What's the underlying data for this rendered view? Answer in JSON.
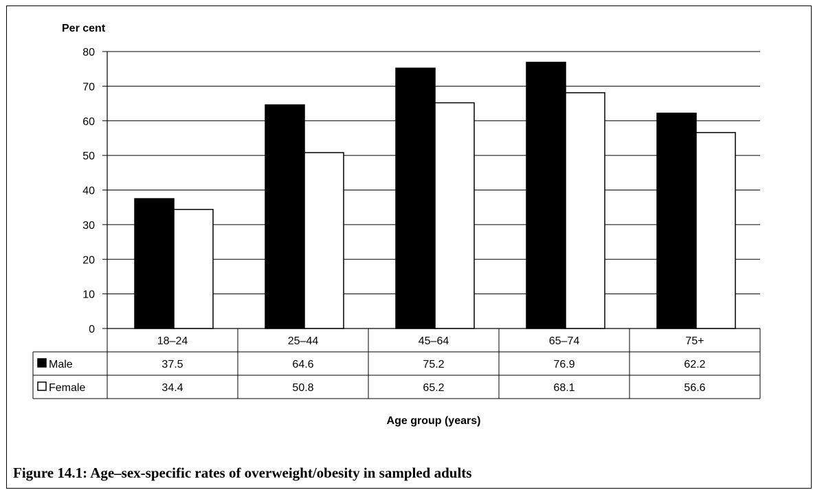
{
  "chart_data": {
    "type": "bar",
    "title": "",
    "ylabel": "Per cent",
    "xlabel": "Age group (years)",
    "ylim": [
      0,
      80
    ],
    "yticks": [
      "0",
      "10",
      "20",
      "30",
      "40",
      "50",
      "60",
      "70",
      "80"
    ],
    "grid": true,
    "legend": "data-table-left",
    "categories": [
      "18–24",
      "25–44",
      "45–64",
      "65–74",
      "75+"
    ],
    "series": [
      {
        "name": "Male",
        "color": "#000000",
        "values": [
          37.5,
          64.6,
          75.2,
          76.9,
          62.2
        ],
        "labels": [
          "37.5",
          "64.6",
          "75.2",
          "76.9",
          "62.2"
        ]
      },
      {
        "name": "Female",
        "color": "#ffffff",
        "values": [
          34.4,
          50.8,
          65.2,
          68.1,
          56.6
        ],
        "labels": [
          "34.4",
          "50.8",
          "65.2",
          "68.1",
          "56.6"
        ]
      }
    ]
  },
  "caption": "Figure 14.1: Age–sex-specific rates of overweight/obesity in sampled adults"
}
